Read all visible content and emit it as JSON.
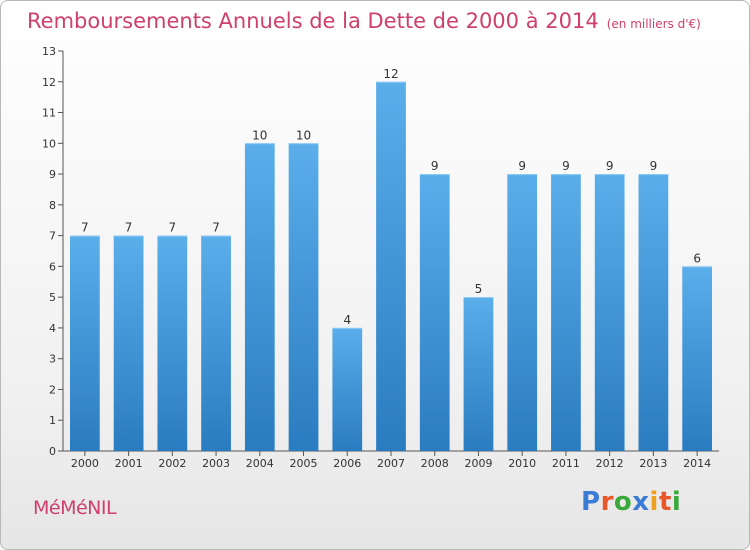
{
  "title": "Remboursements Annuels de la Dette de 2000 à 2014",
  "subtitle": "(en milliers d'€)",
  "commune": "MéMéNIL",
  "logo": {
    "text": "Proxiti",
    "letter_colors": [
      "#3a7bd5",
      "#e8562a",
      "#3aa83a",
      "#3a7bd5",
      "#f0a020",
      "#e8562a",
      "#3aa83a"
    ]
  },
  "chart_data": {
    "type": "bar",
    "title": "Remboursements Annuels de la Dette de 2000 à 2014",
    "subtitle": "(en milliers d'€)",
    "categories": [
      "2000",
      "2001",
      "2002",
      "2003",
      "2004",
      "2005",
      "2006",
      "2007",
      "2008",
      "2009",
      "2010",
      "2011",
      "2012",
      "2013",
      "2014"
    ],
    "values": [
      7,
      7,
      7,
      7,
      10,
      10,
      4,
      12,
      9,
      5,
      9,
      9,
      9,
      9,
      6
    ],
    "ylim": [
      0,
      13
    ],
    "yticks": [
      0,
      1,
      2,
      3,
      4,
      5,
      6,
      7,
      8,
      9,
      10,
      11,
      12,
      13
    ],
    "grid": false,
    "bar_color": "#4da6e6",
    "bar_color_dark": "#2a7cc0"
  }
}
